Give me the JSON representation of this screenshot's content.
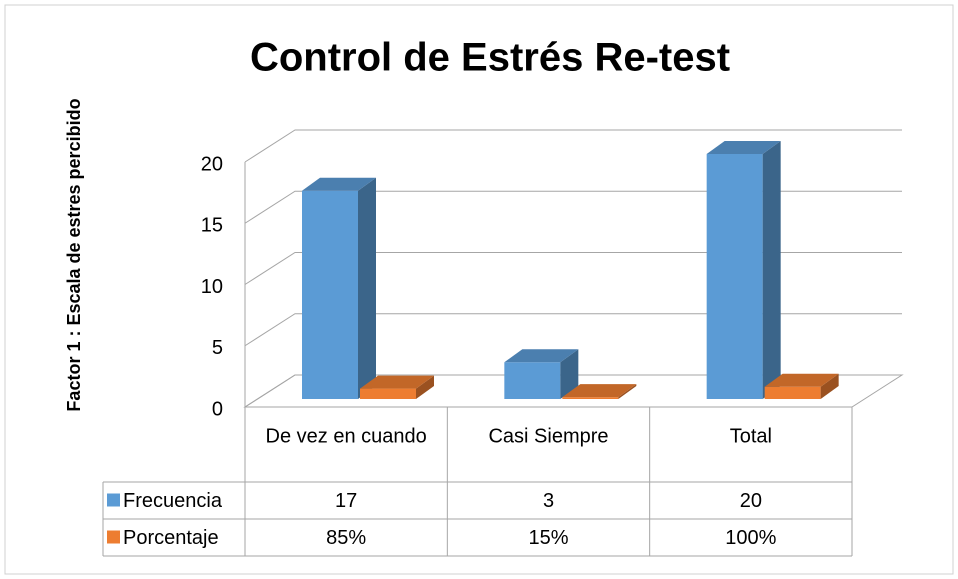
{
  "chart_data": {
    "type": "bar3d",
    "title": "Control de Estrés Re-test",
    "y_label": "Factor 1 : Escala de estres percibido",
    "categories": [
      "De vez en cuando",
      "Casi Siempre",
      "Total"
    ],
    "series": [
      {
        "name": "Frecuencia",
        "color": "#5b9bd5",
        "values": [
          17,
          3,
          20
        ]
      },
      {
        "name": "Porcentaje",
        "color": "#ed7d31",
        "values": [
          0.85,
          0.15,
          1.0
        ],
        "value_labels": [
          "85%",
          "15%",
          "100%"
        ]
      }
    ],
    "ylim": [
      0,
      20
    ],
    "yticks": [
      0,
      5,
      10,
      15,
      20
    ],
    "grid": true,
    "data_table": true
  }
}
